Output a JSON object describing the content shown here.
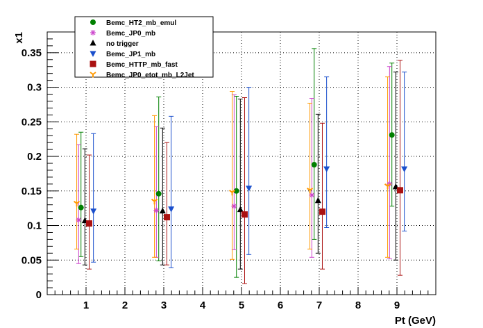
{
  "chart_data": {
    "type": "scatter",
    "title": "",
    "xlabel": "Pt (GeV)",
    "ylabel": "x1",
    "xlim": [
      0,
      10
    ],
    "ylim": [
      0,
      0.38
    ],
    "x_ticks": [
      "1",
      "2",
      "3",
      "4",
      "5",
      "6",
      "7",
      "8",
      "9"
    ],
    "y_ticks": [
      "0.05",
      "0.1",
      "0.15",
      "0.2",
      "0.25",
      "0.3",
      "0.35"
    ],
    "y_zero_label": "0",
    "grid": true,
    "legend_position": "top-left",
    "series": [
      {
        "name": "Bemc_HT2_mb_emul",
        "color": "#008000",
        "marker": "circle",
        "points": [
          {
            "x": 0.87,
            "y": 0.126,
            "lo": 0.055,
            "hi": 0.235
          },
          {
            "x": 2.87,
            "y": 0.146,
            "lo": 0.049,
            "hi": 0.286
          },
          {
            "x": 4.87,
            "y": 0.15,
            "lo": 0.025,
            "hi": 0.287
          },
          {
            "x": 6.87,
            "y": 0.188,
            "lo": 0.08,
            "hi": 0.356
          },
          {
            "x": 8.87,
            "y": 0.231,
            "lo": 0.128,
            "hi": 0.335
          }
        ]
      },
      {
        "name": "Bemc_JP0_mb",
        "color": "#cc44cc",
        "marker": "star",
        "points": [
          {
            "x": 0.81,
            "y": 0.108,
            "lo": 0.045,
            "hi": 0.217
          },
          {
            "x": 2.81,
            "y": 0.122,
            "lo": 0.054,
            "hi": 0.243
          },
          {
            "x": 4.81,
            "y": 0.128,
            "lo": 0.065,
            "hi": 0.289
          },
          {
            "x": 6.81,
            "y": 0.144,
            "lo": 0.054,
            "hi": 0.284
          },
          {
            "x": 8.81,
            "y": 0.16,
            "lo": 0.052,
            "hi": 0.33
          }
        ]
      },
      {
        "name": "no trigger",
        "color": "#000000",
        "marker": "triangle-up",
        "points": [
          {
            "x": 0.97,
            "y": 0.107,
            "lo": 0.043,
            "hi": 0.211
          },
          {
            "x": 2.97,
            "y": 0.121,
            "lo": 0.043,
            "hi": 0.241
          },
          {
            "x": 4.97,
            "y": 0.123,
            "lo": 0.037,
            "hi": 0.283
          },
          {
            "x": 6.97,
            "y": 0.136,
            "lo": 0.06,
            "hi": 0.261
          },
          {
            "x": 8.97,
            "y": 0.156,
            "lo": 0.05,
            "hi": 0.322
          }
        ]
      },
      {
        "name": "Bemc_JP1_mb",
        "color": "#1a4fcc",
        "marker": "triangle-down",
        "points": [
          {
            "x": 1.19,
            "y": 0.121,
            "lo": 0.047,
            "hi": 0.233
          },
          {
            "x": 3.19,
            "y": 0.124,
            "lo": 0.039,
            "hi": 0.258
          },
          {
            "x": 5.19,
            "y": 0.154,
            "lo": 0.058,
            "hi": 0.3
          },
          {
            "x": 7.19,
            "y": 0.182,
            "lo": 0.097,
            "hi": 0.315
          },
          {
            "x": 9.19,
            "y": 0.182,
            "lo": 0.092,
            "hi": 0.322
          }
        ]
      },
      {
        "name": "Bemc_HTTP_mb_fast",
        "color": "#aa1111",
        "marker": "square",
        "points": [
          {
            "x": 1.08,
            "y": 0.103,
            "lo": 0.037,
            "hi": 0.202
          },
          {
            "x": 3.08,
            "y": 0.112,
            "lo": 0.043,
            "hi": 0.22
          },
          {
            "x": 5.08,
            "y": 0.116,
            "lo": 0.016,
            "hi": 0.285
          },
          {
            "x": 7.08,
            "y": 0.12,
            "lo": 0.037,
            "hi": 0.248
          },
          {
            "x": 9.08,
            "y": 0.151,
            "lo": 0.028,
            "hi": 0.339
          }
        ]
      },
      {
        "name": "Bemc_JP0_etot_mb_L2Jet",
        "color": "#ff9900",
        "marker": "tristar",
        "points": [
          {
            "x": 0.76,
            "y": 0.132,
            "lo": 0.066,
            "hi": 0.232
          },
          {
            "x": 2.76,
            "y": 0.135,
            "lo": 0.054,
            "hi": 0.259
          },
          {
            "x": 4.76,
            "y": 0.148,
            "lo": 0.051,
            "hi": 0.294
          },
          {
            "x": 6.76,
            "y": 0.151,
            "lo": 0.066,
            "hi": 0.277
          },
          {
            "x": 8.76,
            "y": 0.157,
            "lo": 0.054,
            "hi": 0.315
          }
        ]
      }
    ]
  }
}
